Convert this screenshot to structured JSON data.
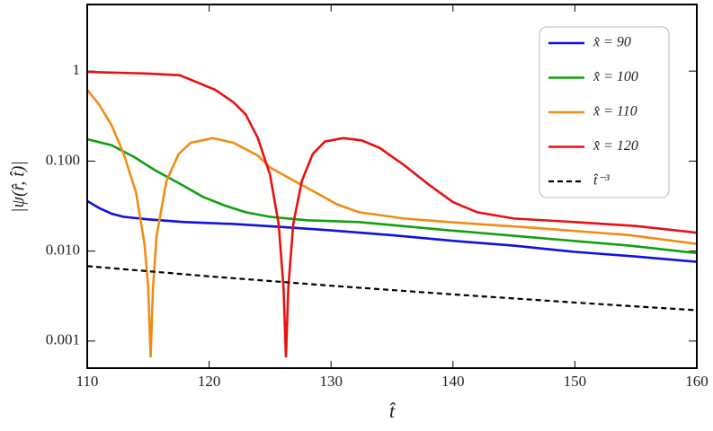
{
  "chart_data": {
    "type": "line",
    "x_label": "t̂",
    "y_label": "|ψ(r̂, t̂)|",
    "xlim": [
      110,
      160
    ],
    "xticks": [
      110,
      120,
      130,
      140,
      150,
      160
    ],
    "ylim": [
      0.0005,
      5.5
    ],
    "yticks": [
      1,
      {
        "value": 0.1,
        "label": "0.100"
      },
      {
        "value": 0.01,
        "label": "0.010"
      },
      0.001
    ],
    "log_y": true,
    "grid": false,
    "legend_position": "top right",
    "series": [
      {
        "name": "x̂ = 90",
        "color": "#1010e0",
        "dash": false,
        "x": [
          110,
          111,
          112,
          113,
          115,
          118,
          122,
          126,
          130,
          135,
          140,
          145,
          150,
          155,
          160
        ],
        "values": [
          0.036,
          0.03,
          0.026,
          0.024,
          0.0225,
          0.021,
          0.02,
          0.0185,
          0.017,
          0.015,
          0.013,
          0.0115,
          0.0098,
          0.0087,
          0.0076
        ]
      },
      {
        "name": "x̂ = 100",
        "color": "#10a010",
        "dash": false,
        "x": [
          110,
          112,
          113.9,
          115.5,
          117.6,
          119.5,
          121.3,
          123,
          125,
          128,
          132.3,
          139.7,
          147,
          154.5,
          160
        ],
        "values": [
          0.175,
          0.15,
          0.11,
          0.08,
          0.056,
          0.04,
          0.032,
          0.027,
          0.024,
          0.022,
          0.021,
          0.017,
          0.014,
          0.0115,
          0.0095
        ]
      },
      {
        "name": "x̂ = 110",
        "color": "#f08c14",
        "dash": false,
        "x": [
          110,
          111,
          112,
          113,
          114,
          114.7,
          115,
          115.2,
          115.4,
          115.7,
          116.5,
          117.5,
          118.5,
          120.3,
          122,
          124,
          125,
          127,
          128.7,
          130.5,
          132.3,
          136,
          139.7,
          147,
          154.5,
          160
        ],
        "values": [
          0.62,
          0.42,
          0.25,
          0.12,
          0.045,
          0.012,
          0.004,
          0.00066,
          0.004,
          0.015,
          0.06,
          0.12,
          0.16,
          0.18,
          0.16,
          0.115,
          0.085,
          0.06,
          0.045,
          0.033,
          0.027,
          0.023,
          0.021,
          0.018,
          0.015,
          0.012
        ]
      },
      {
        "name": "x̂ = 120",
        "color": "#e81010",
        "dash": false,
        "x": [
          110,
          115,
          117.6,
          120.5,
          122,
          123,
          124,
          125,
          125.7,
          126.1,
          126.3,
          126.5,
          126.9,
          127.6,
          128.5,
          129.5,
          131,
          132.5,
          134,
          136,
          138,
          140,
          142,
          145,
          150,
          155,
          160
        ],
        "values": [
          0.98,
          0.94,
          0.9,
          0.62,
          0.45,
          0.33,
          0.18,
          0.07,
          0.02,
          0.004,
          0.00066,
          0.004,
          0.02,
          0.06,
          0.12,
          0.165,
          0.18,
          0.17,
          0.14,
          0.09,
          0.055,
          0.035,
          0.027,
          0.023,
          0.021,
          0.019,
          0.016
        ]
      },
      {
        "name": "t̂⁻³",
        "color": "#000000",
        "dash": true,
        "x": [
          110,
          120,
          130,
          140,
          150,
          160
        ],
        "values": [
          0.0068,
          0.00524,
          0.00412,
          0.0033,
          0.00268,
          0.0022
        ]
      }
    ]
  }
}
